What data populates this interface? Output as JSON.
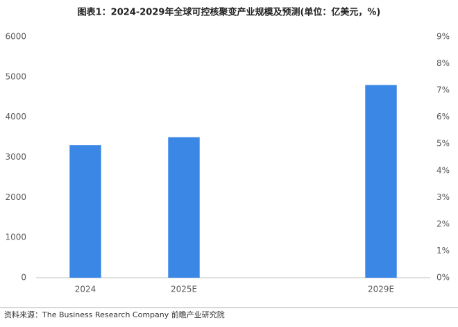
{
  "chart_data": {
    "type": "bar",
    "title": "图表1：2024-2029年全球可控核聚变产业规模及预测(单位：亿美元，%)",
    "source": "资料来源：The Business Research Company 前瞻产业研究院",
    "categories": [
      "2024",
      "2025E",
      null,
      "2029E"
    ],
    "values": [
      3300,
      3500,
      null,
      4800
    ],
    "color": "#3b87e6",
    "ylim": [
      0,
      6000
    ],
    "yticks": [
      0,
      1000,
      2000,
      3000,
      4000,
      5000,
      6000
    ],
    "y2lim": [
      0,
      9
    ],
    "y2ticks": [
      {
        "value": 0,
        "label": "0%"
      },
      {
        "value": 1,
        "label": "1%"
      },
      {
        "value": 2,
        "label": "2%"
      },
      {
        "value": 3,
        "label": "3%"
      },
      {
        "value": 4,
        "label": "4%"
      },
      {
        "value": 5,
        "label": "5%"
      },
      {
        "value": 6,
        "label": "6%"
      },
      {
        "value": 7,
        "label": "7%"
      },
      {
        "value": 8,
        "label": "8%"
      },
      {
        "value": 9,
        "label": "9%"
      }
    ],
    "grid": false
  }
}
